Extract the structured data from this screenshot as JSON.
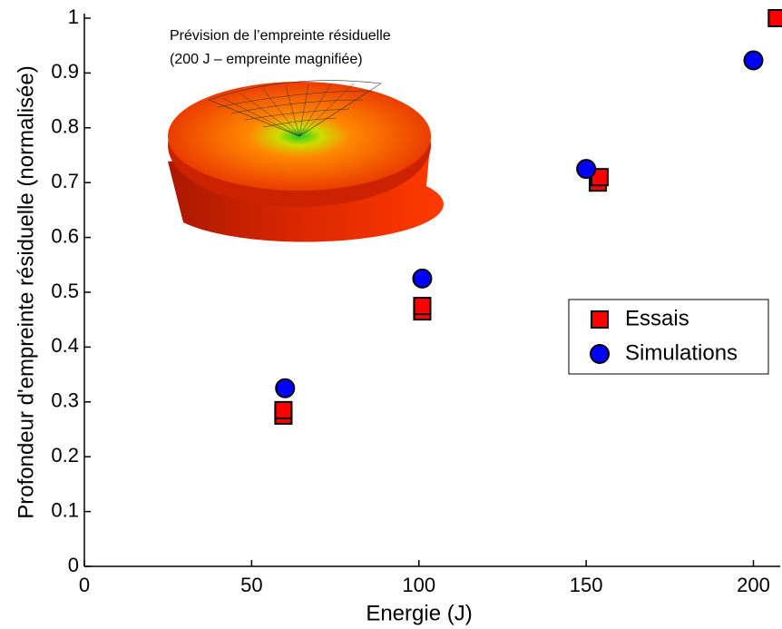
{
  "chart_data": {
    "type": "scatter",
    "xlabel": "Energie (J)",
    "ylabel": "Profondeur d'empreinte résiduelle (normalisée)",
    "annotations": [
      "Prévision de l’empreinte résiduelle",
      "(200 J – empreinte magnifiée)"
    ],
    "xlim": [
      0,
      208
    ],
    "xticks": [
      0,
      50,
      100,
      150,
      200
    ],
    "ylim": [
      0,
      1
    ],
    "yticks": [
      0,
      0.1,
      0.2,
      0.3,
      0.4,
      0.5,
      0.6,
      0.7,
      0.8,
      0.9,
      1
    ],
    "legend": "right",
    "series": [
      {
        "name": "Essais",
        "color": "#ff0000",
        "marker": "square",
        "x": [
          59.5,
          59.5,
          101,
          101,
          153.5,
          154,
          207
        ],
        "values": [
          0.275,
          0.285,
          0.465,
          0.475,
          0.7,
          0.71,
          1.0
        ]
      },
      {
        "name": "Simulations",
        "color": "#0000ff",
        "marker": "circle",
        "x": [
          60,
          101,
          150,
          200
        ],
        "values": [
          0.325,
          0.525,
          0.725,
          0.923
        ]
      }
    ]
  }
}
